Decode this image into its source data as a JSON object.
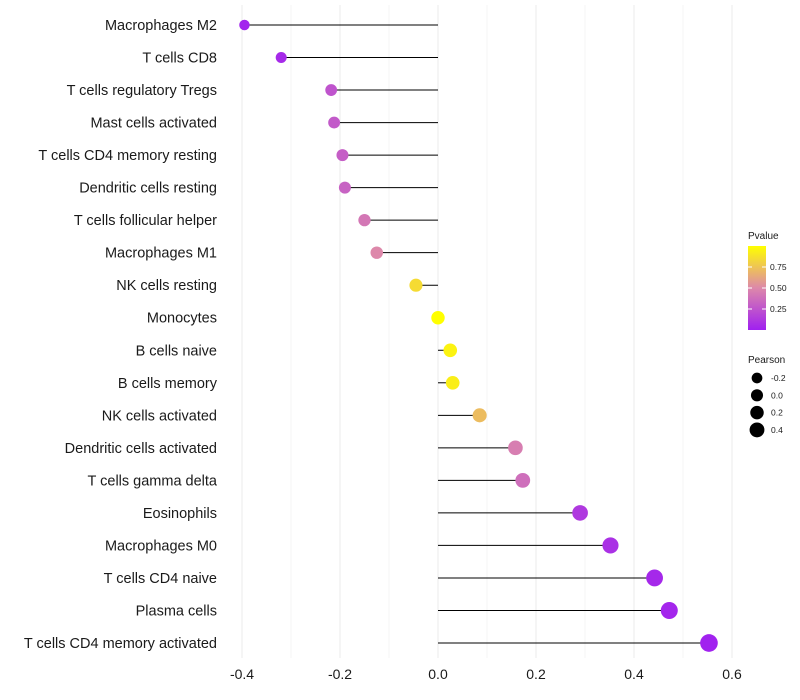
{
  "chart_data": {
    "type": "lollipop",
    "x_axis": {
      "range": [
        -0.42,
        0.6
      ],
      "ticks": [
        -0.4,
        -0.2,
        0.0,
        0.2,
        0.4,
        0.6
      ],
      "tick_labels": [
        "-0.4",
        "-0.2",
        "0.0",
        "0.2",
        "0.4",
        "0.6"
      ],
      "minor_gridlines": [
        -0.3,
        -0.1,
        0.1,
        0.3,
        0.5
      ]
    },
    "baseline": 0.0,
    "categories": [
      "Macrophages M2",
      "T cells CD8",
      "T cells regulatory  Tregs",
      "Mast cells activated",
      "T cells CD4 memory resting",
      "Dendritic cells resting",
      "T cells follicular helper",
      "Macrophages M1",
      "NK cells resting",
      "Monocytes",
      "B cells naive",
      "B cells memory",
      "NK cells activated",
      "Dendritic cells activated",
      "T cells gamma delta",
      "Eosinophils",
      "Macrophages M0",
      "T cells CD4 naive",
      "Plasma cells",
      "T cells CD4 memory activated"
    ],
    "pearson": [
      -0.395,
      -0.32,
      -0.218,
      -0.212,
      -0.195,
      -0.19,
      -0.15,
      -0.125,
      -0.045,
      0.0,
      0.025,
      0.03,
      0.085,
      0.158,
      0.173,
      0.29,
      0.352,
      0.442,
      0.472,
      0.553
    ],
    "pvalue": [
      0.02,
      0.05,
      0.25,
      0.28,
      0.3,
      0.32,
      0.42,
      0.5,
      0.85,
      1.0,
      0.95,
      0.93,
      0.72,
      0.45,
      0.38,
      0.12,
      0.08,
      0.04,
      0.03,
      0.01
    ],
    "legend_color": {
      "title": "Pvalue",
      "ticks": [
        0.75,
        0.5,
        0.25
      ],
      "tick_labels": [
        "0.75",
        "0.50",
        "0.25"
      ],
      "range": [
        0.0,
        1.0
      ],
      "low_color": "#a020f0",
      "mid_color": "#dd88aa",
      "high_color": "#ffff00"
    },
    "legend_size": {
      "title": "Pearson",
      "values": [
        -0.2,
        0.0,
        0.2,
        0.4
      ],
      "labels": [
        "-0.2",
        "0.0",
        "0.2",
        "0.4"
      ]
    },
    "colors": {
      "stem": "#000000",
      "gridline": "#ebebeb"
    }
  }
}
